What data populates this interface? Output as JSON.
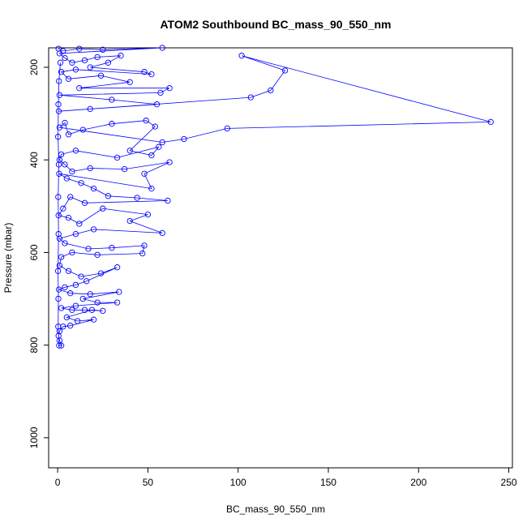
{
  "chart_data": {
    "type": "line",
    "title": "ATOM2 Southbound BC_mass_90_550_nm",
    "xlabel": "BC_mass_90_550_nm",
    "ylabel": "Pressure (mbar)",
    "xlim": [
      -5,
      252
    ],
    "ylim": [
      1065,
      158
    ],
    "y_inverted": true,
    "grid": false,
    "legend": "none",
    "x_ticks": [
      0,
      50,
      100,
      150,
      200,
      250
    ],
    "y_ticks": [
      200,
      400,
      600,
      800,
      1000
    ],
    "color": "#0000ff",
    "marker": "open-circle",
    "series": [
      {
        "points": [
          [
            0.5,
            160
          ],
          [
            3,
            165
          ],
          [
            12,
            160
          ],
          [
            25,
            162
          ],
          [
            58,
            158
          ],
          [
            1,
            170
          ],
          [
            4,
            180
          ],
          [
            8,
            190
          ],
          [
            15,
            185
          ],
          [
            22,
            178
          ],
          [
            35,
            175
          ],
          [
            28,
            190
          ],
          [
            18,
            200
          ],
          [
            48,
            210
          ],
          [
            52,
            215
          ],
          [
            10,
            205
          ],
          [
            2,
            210
          ],
          [
            6,
            225
          ],
          [
            24,
            218
          ],
          [
            40,
            232
          ],
          [
            12,
            245
          ],
          [
            62,
            245
          ],
          [
            57,
            255
          ],
          [
            1,
            260
          ],
          [
            30,
            270
          ],
          [
            55,
            280
          ],
          [
            18,
            290
          ],
          [
            0.6,
            295
          ],
          [
            107,
            265
          ],
          [
            118,
            250
          ],
          [
            126,
            207
          ],
          [
            102,
            175
          ],
          [
            240,
            318
          ],
          [
            94,
            332
          ],
          [
            70,
            355
          ],
          [
            58,
            362
          ],
          [
            1,
            330
          ],
          [
            4,
            320
          ],
          [
            6,
            345
          ],
          [
            14,
            335
          ],
          [
            30,
            322
          ],
          [
            49,
            315
          ],
          [
            54,
            328
          ],
          [
            40,
            380
          ],
          [
            52,
            390
          ],
          [
            56,
            372
          ],
          [
            33,
            395
          ],
          [
            10,
            380
          ],
          [
            2,
            388
          ],
          [
            1,
            400
          ],
          [
            4,
            410
          ],
          [
            8,
            425
          ],
          [
            18,
            418
          ],
          [
            37,
            420
          ],
          [
            62,
            405
          ],
          [
            48,
            430
          ],
          [
            52,
            462
          ],
          [
            0.8,
            430
          ],
          [
            5,
            440
          ],
          [
            13,
            450
          ],
          [
            20,
            462
          ],
          [
            28,
            478
          ],
          [
            44,
            482
          ],
          [
            61,
            488
          ],
          [
            15,
            493
          ],
          [
            7,
            480
          ],
          [
            3,
            505
          ],
          [
            0.5,
            520
          ],
          [
            6,
            525
          ],
          [
            12,
            538
          ],
          [
            25,
            505
          ],
          [
            50,
            518
          ],
          [
            40,
            532
          ],
          [
            58,
            558
          ],
          [
            20,
            550
          ],
          [
            10,
            560
          ],
          [
            1,
            570
          ],
          [
            4,
            580
          ],
          [
            17,
            592
          ],
          [
            30,
            590
          ],
          [
            48,
            585
          ],
          [
            47,
            602
          ],
          [
            22,
            605
          ],
          [
            8,
            600
          ],
          [
            2,
            610
          ],
          [
            1,
            628
          ],
          [
            6,
            640
          ],
          [
            13,
            652
          ],
          [
            24,
            645
          ],
          [
            33,
            632
          ],
          [
            16,
            662
          ],
          [
            10,
            670
          ],
          [
            4,
            675
          ],
          [
            0.7,
            680
          ],
          [
            7,
            688
          ],
          [
            18,
            690
          ],
          [
            34,
            685
          ],
          [
            14,
            700
          ],
          [
            22,
            708
          ],
          [
            33,
            708
          ],
          [
            10,
            715
          ],
          [
            2,
            720
          ],
          [
            8,
            724
          ],
          [
            15,
            724
          ],
          [
            25,
            726
          ],
          [
            19,
            724
          ],
          [
            5,
            740
          ],
          [
            11,
            748
          ],
          [
            20,
            745
          ],
          [
            7,
            758
          ],
          [
            3,
            760
          ],
          [
            1,
            770
          ],
          [
            0.5,
            780
          ],
          [
            1,
            790
          ],
          [
            2,
            801
          ],
          [
            0.8,
            801
          ],
          [
            0.3,
            760
          ],
          [
            0.4,
            700
          ],
          [
            0.2,
            640
          ],
          [
            0.5,
            560
          ],
          [
            0.3,
            480
          ],
          [
            0.6,
            410
          ],
          [
            0.2,
            350
          ],
          [
            0.4,
            280
          ],
          [
            0.7,
            230
          ],
          [
            1.5,
            190
          ]
        ]
      }
    ]
  }
}
